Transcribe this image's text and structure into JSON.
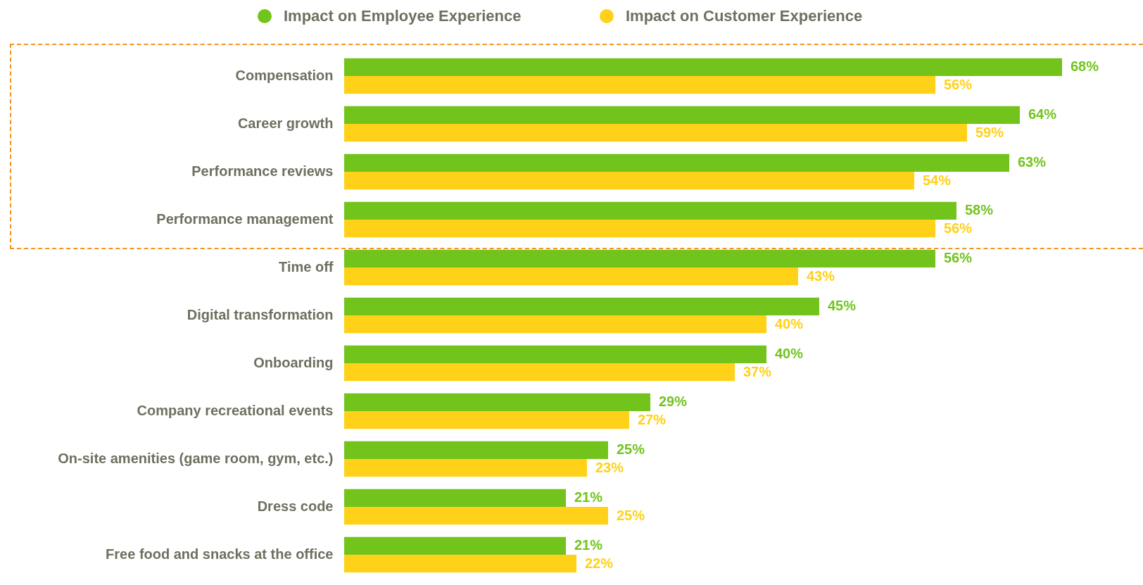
{
  "chart_data": {
    "type": "bar",
    "orientation": "horizontal",
    "legend": "top",
    "categories": [
      "Compensation",
      "Career growth",
      "Performance reviews",
      "Performance management",
      "Time off",
      "Digital transformation",
      "Onboarding",
      "Company recreational events",
      "On-site amenities (game room, gym, etc.)",
      "Dress code",
      "Free food and snacks at the office"
    ],
    "series": [
      {
        "name": "Impact on Employee Experience",
        "color": "#72c41d",
        "values": [
          68,
          64,
          63,
          58,
          56,
          45,
          40,
          29,
          25,
          21,
          21
        ],
        "value_labels": [
          "68%",
          "64%",
          "63%",
          "58%",
          "56%",
          "45%",
          "40%",
          "29%",
          "25%",
          "21%",
          "21%"
        ]
      },
      {
        "name": "Impact on Customer Experience",
        "color": "#ffd118",
        "values": [
          56,
          59,
          54,
          56,
          43,
          40,
          37,
          27,
          23,
          25,
          22
        ],
        "value_labels": [
          "56%",
          "59%",
          "54%",
          "56%",
          "43%",
          "40%",
          "37%",
          "27%",
          "23%",
          "25%",
          "22%"
        ]
      }
    ]
  }
}
